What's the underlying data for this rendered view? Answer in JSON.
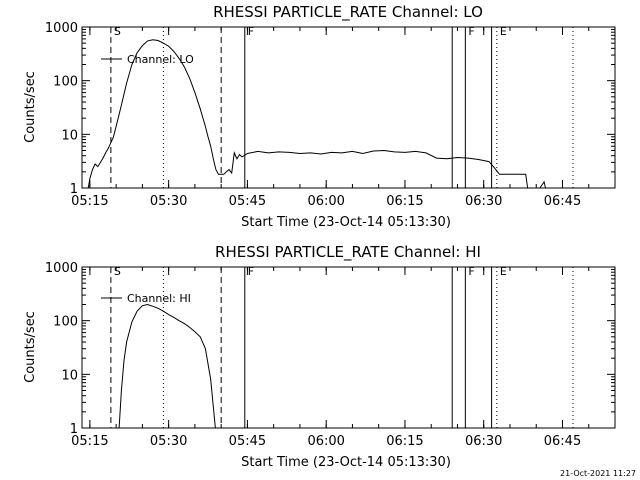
{
  "timestamp": "21-Oct-2021 11:27",
  "chart_data": [
    {
      "type": "line",
      "title": "RHESSI PARTICLE_RATE Channel: LO",
      "xlabel": "Start Time (23-Oct-14 05:13:30)",
      "ylabel": "Counts/sec",
      "yscale": "log",
      "xlim": [
        "05:13:30",
        "06:55:00"
      ],
      "ylim": [
        1,
        1000
      ],
      "x_ticks": [
        "05:15",
        "05:30",
        "05:45",
        "06:00",
        "06:15",
        "06:30",
        "06:45"
      ],
      "y_ticks": [
        "1",
        "10",
        "100",
        "1000"
      ],
      "legend": "Channel: LO",
      "legend_placement": "top-left",
      "grid": false,
      "series": [
        {
          "name": "Channel: LO",
          "x": [
            "05:14:30",
            "05:15:00",
            "05:15:30",
            "05:16:00",
            "05:16:30",
            "05:17:00",
            "05:17:30",
            "05:18:00",
            "05:18:30",
            "05:19:00",
            "05:19:30",
            "05:20:00",
            "05:21:00",
            "05:22:00",
            "05:23:00",
            "05:24:00",
            "05:25:00",
            "05:26:00",
            "05:27:00",
            "05:28:00",
            "05:29:00",
            "05:30:00",
            "05:31:00",
            "05:32:00",
            "05:33:00",
            "05:34:00",
            "05:35:00",
            "05:36:00",
            "05:37:00",
            "05:37:30",
            "05:38:00",
            "05:38:30",
            "05:39:00",
            "05:39:30",
            "05:40:00",
            "05:40:30",
            "05:41:00",
            "05:41:30",
            "05:42:00",
            "05:42:30",
            "05:43:00",
            "05:43:30",
            "05:44:00",
            "05:45:00",
            "05:47:00",
            "05:49:00",
            "05:51:00",
            "05:53:00",
            "05:55:00",
            "05:57:00",
            "05:59:00",
            "06:01:00",
            "06:03:00",
            "06:05:00",
            "06:07:00",
            "06:09:00",
            "06:11:00",
            "06:13:00",
            "06:15:00",
            "06:17:00",
            "06:19:00",
            "06:21:00",
            "06:23:00",
            "06:25:00",
            "06:27:00",
            "06:29:00",
            "06:31:00",
            "06:32:00",
            "06:33:00",
            "06:35:00",
            "06:37:00",
            "06:38:00",
            "06:38:30",
            "06:40:00",
            "06:41:30",
            "06:42:00"
          ],
          "y": [
            0.8,
            1.5,
            2.2,
            2.8,
            2.5,
            3.0,
            3.6,
            4.5,
            5.5,
            7,
            9,
            14,
            35,
            90,
            200,
            330,
            450,
            550,
            580,
            560,
            500,
            440,
            350,
            260,
            180,
            110,
            60,
            30,
            14,
            9,
            6,
            3.5,
            2.2,
            1.8,
            1.8,
            1.8,
            2.0,
            2.2,
            1.9,
            4.5,
            3.5,
            4.2,
            3.8,
            4.4,
            4.8,
            4.5,
            4.7,
            4.6,
            4.4,
            4.5,
            4.3,
            4.6,
            4.5,
            4.8,
            4.4,
            4.9,
            5.0,
            4.7,
            4.6,
            4.8,
            4.5,
            3.6,
            3.5,
            3.7,
            3.6,
            3.4,
            3.1,
            2.4,
            1.8,
            1.8,
            1.8,
            1.8,
            0.8,
            0.8,
            1.3,
            0.8
          ]
        }
      ],
      "markers": [
        {
          "label": "S",
          "time": "05:19:00",
          "style": "dashed"
        },
        {
          "label": "",
          "time": "05:29:00",
          "style": "dotted"
        },
        {
          "label": "",
          "time": "05:40:00",
          "style": "dashed"
        },
        {
          "label": "F",
          "time": "05:44:30",
          "style": "solid"
        },
        {
          "label": "",
          "time": "06:24:00",
          "style": "solid"
        },
        {
          "label": "F",
          "time": "06:26:30",
          "style": "solid"
        },
        {
          "label": "",
          "time": "06:31:30",
          "style": "solid"
        },
        {
          "label": "E",
          "time": "06:32:30",
          "style": "dotted"
        },
        {
          "label": "",
          "time": "06:47:00",
          "style": "dotted"
        }
      ]
    },
    {
      "type": "line",
      "title": "RHESSI PARTICLE_RATE Channel: HI",
      "xlabel": "Start Time (23-Oct-14 05:13:30)",
      "ylabel": "Counts/sec",
      "yscale": "log",
      "xlim": [
        "05:13:30",
        "06:55:00"
      ],
      "ylim": [
        1,
        1000
      ],
      "x_ticks": [
        "05:15",
        "05:30",
        "05:45",
        "06:00",
        "06:15",
        "06:30",
        "06:45"
      ],
      "y_ticks": [
        "1",
        "10",
        "100",
        "1000"
      ],
      "legend": "Channel: HI",
      "legend_placement": "top-left",
      "grid": false,
      "series": [
        {
          "name": "Channel: HI",
          "x": [
            "05:20:30",
            "05:21:00",
            "05:21:30",
            "05:22:00",
            "05:23:00",
            "05:24:00",
            "05:25:00",
            "05:26:00",
            "05:27:00",
            "05:28:00",
            "05:29:00",
            "05:30:00",
            "05:31:00",
            "05:32:00",
            "05:33:00",
            "05:34:00",
            "05:35:00",
            "05:36:00",
            "05:37:00",
            "05:38:00",
            "05:38:30",
            "05:39:00"
          ],
          "y": [
            0.8,
            5,
            18,
            40,
            95,
            150,
            190,
            200,
            185,
            170,
            150,
            130,
            115,
            100,
            88,
            75,
            62,
            50,
            30,
            8,
            2.5,
            0.8
          ]
        }
      ],
      "markers": [
        {
          "label": "S",
          "time": "05:19:00",
          "style": "dashed"
        },
        {
          "label": "",
          "time": "05:29:00",
          "style": "dotted"
        },
        {
          "label": "",
          "time": "05:40:00",
          "style": "dashed"
        },
        {
          "label": "F",
          "time": "05:44:30",
          "style": "solid"
        },
        {
          "label": "",
          "time": "06:24:00",
          "style": "solid"
        },
        {
          "label": "F",
          "time": "06:26:30",
          "style": "solid"
        },
        {
          "label": "",
          "time": "06:31:30",
          "style": "solid"
        },
        {
          "label": "E",
          "time": "06:32:30",
          "style": "dotted"
        },
        {
          "label": "",
          "time": "06:47:00",
          "style": "dotted"
        }
      ]
    }
  ]
}
